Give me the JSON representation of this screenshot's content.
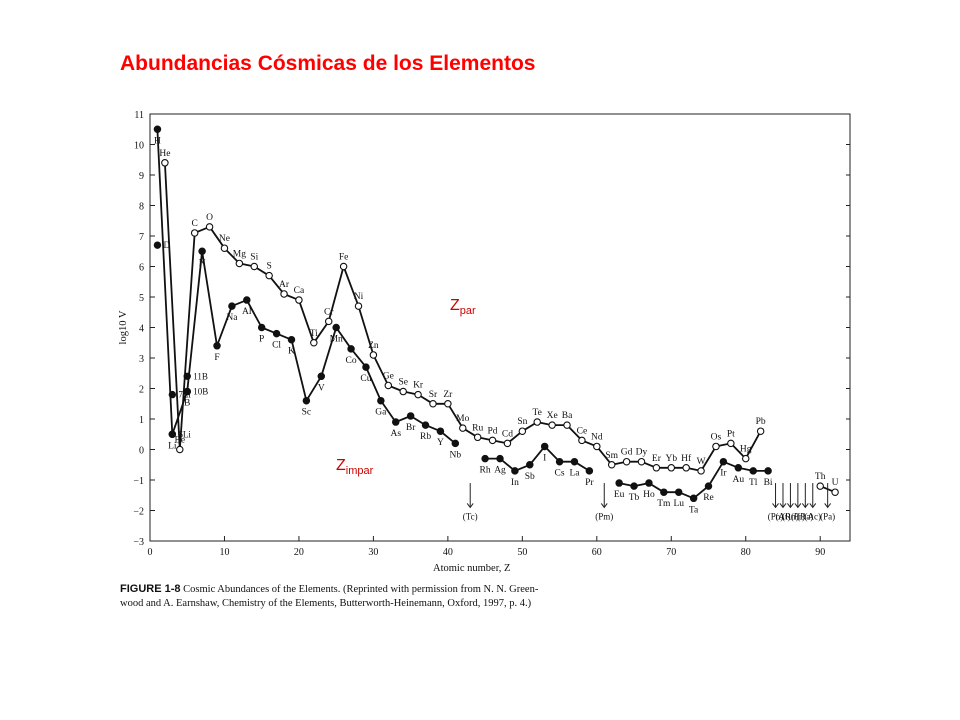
{
  "slide_title": "Abundancias Cósmicas de los Elementos",
  "caption": {
    "label": "FIGURE 1-8",
    "line1": "Cosmic Abundances of the Elements. (Reprinted with permission from N. N. Green-",
    "line2": "wood and A. Earnshaw, Chemistry of the Elements, Butterworth-Heinemann, Oxford, 1997, p. 4.)"
  },
  "chart_data": {
    "type": "line",
    "xlabel": "Atomic number, Z",
    "ylabel": "log10 V",
    "xlim": [
      0,
      94
    ],
    "ylim": [
      -3,
      11
    ],
    "xticks": [
      0,
      10,
      20,
      30,
      40,
      50,
      60,
      70,
      80,
      90
    ],
    "yticks": [
      -3,
      -2,
      -1,
      0,
      1,
      2,
      3,
      4,
      5,
      6,
      7,
      8,
      9,
      10,
      11
    ],
    "annotations": {
      "even_label": "Z par",
      "even_main": "Z",
      "even_sub": "par",
      "odd_label": "Z impar",
      "odd_main": "Z",
      "odd_sub": "impar"
    },
    "series": [
      {
        "name": "even",
        "marker": "open",
        "segments": [
          [
            [
              2,
              9.4,
              "He"
            ],
            [
              4,
              0,
              "Be"
            ],
            [
              6,
              7.1,
              "C"
            ],
            [
              8,
              7.3,
              "O"
            ],
            [
              10,
              6.6,
              "Ne"
            ],
            [
              12,
              6.1,
              "Mg"
            ],
            [
              14,
              6.0,
              "Si"
            ],
            [
              16,
              5.7,
              "S"
            ],
            [
              18,
              5.1,
              "Ar"
            ],
            [
              20,
              4.9,
              "Ca"
            ],
            [
              22,
              3.5,
              "Ti"
            ],
            [
              24,
              4.2,
              "Cr"
            ],
            [
              26,
              6.0,
              "Fe"
            ],
            [
              28,
              4.7,
              "Ni"
            ],
            [
              30,
              3.1,
              "Zn"
            ],
            [
              32,
              2.1,
              "Ge"
            ],
            [
              34,
              1.9,
              "Se"
            ],
            [
              36,
              1.8,
              "Kr"
            ],
            [
              38,
              1.5,
              "Sr"
            ],
            [
              40,
              1.5,
              "Zr"
            ],
            [
              42,
              0.7,
              "Mo"
            ],
            [
              44,
              0.4,
              "Ru"
            ],
            [
              46,
              0.3,
              "Pd"
            ],
            [
              48,
              0.2,
              "Cd"
            ],
            [
              50,
              0.6,
              "Sn"
            ],
            [
              52,
              0.9,
              "Te"
            ],
            [
              54,
              0.8,
              "Xe"
            ],
            [
              56,
              0.8,
              "Ba"
            ],
            [
              58,
              0.3,
              "Ce"
            ],
            [
              60,
              0.1,
              "Nd"
            ],
            [
              62,
              -0.5,
              "Sm"
            ],
            [
              64,
              -0.4,
              "Gd"
            ],
            [
              66,
              -0.4,
              "Dy"
            ],
            [
              68,
              -0.6,
              "Er"
            ],
            [
              70,
              -0.6,
              "Yb"
            ],
            [
              72,
              -0.6,
              "Hf"
            ],
            [
              74,
              -0.7,
              "W"
            ],
            [
              76,
              0.1,
              "Os"
            ],
            [
              78,
              0.2,
              "Pt"
            ],
            [
              80,
              -0.3,
              "Hg"
            ],
            [
              82,
              0.6,
              "Pb"
            ]
          ],
          [
            [
              90,
              -1.2,
              "Th"
            ],
            [
              92,
              -1.4,
              "U"
            ]
          ]
        ]
      },
      {
        "name": "odd",
        "marker": "filled",
        "segments": [
          [
            [
              1,
              10.5,
              "H"
            ],
            [
              3,
              0.5,
              "Li"
            ],
            [
              5,
              1.9,
              "B"
            ],
            [
              7,
              6.5,
              "N"
            ],
            [
              9,
              3.4,
              "F"
            ],
            [
              11,
              4.7,
              "Na"
            ],
            [
              13,
              4.9,
              "Al"
            ],
            [
              15,
              4.0,
              "P"
            ],
            [
              17,
              3.8,
              "Cl"
            ],
            [
              19,
              3.6,
              "K"
            ],
            [
              21,
              1.6,
              "Sc"
            ],
            [
              23,
              2.4,
              "V"
            ],
            [
              25,
              4.0,
              "Mn"
            ],
            [
              27,
              3.3,
              "Co"
            ],
            [
              29,
              2.7,
              "Cu"
            ],
            [
              31,
              1.6,
              "Ga"
            ],
            [
              33,
              0.9,
              "As"
            ],
            [
              35,
              1.1,
              "Br"
            ],
            [
              37,
              0.8,
              "Rb"
            ],
            [
              39,
              0.6,
              "Y"
            ],
            [
              41,
              0.2,
              "Nb"
            ]
          ],
          [
            [
              45,
              -0.3,
              "Rh"
            ],
            [
              47,
              -0.3,
              "Ag"
            ],
            [
              49,
              -0.7,
              "In"
            ],
            [
              51,
              -0.5,
              "Sb"
            ],
            [
              53,
              0.1,
              "I"
            ],
            [
              55,
              -0.4,
              "Cs"
            ],
            [
              57,
              -0.4,
              "La"
            ],
            [
              59,
              -0.7,
              "Pr"
            ]
          ],
          [
            [
              63,
              -1.1,
              "Eu"
            ],
            [
              65,
              -1.2,
              "Tb"
            ],
            [
              67,
              -1.1,
              "Ho"
            ],
            [
              69,
              -1.4,
              "Tm"
            ],
            [
              71,
              -1.4,
              "Lu"
            ],
            [
              73,
              -1.6,
              "Ta"
            ],
            [
              75,
              -1.2,
              "Re"
            ],
            [
              77,
              -0.4,
              "Ir"
            ],
            [
              79,
              -0.6,
              "Au"
            ],
            [
              81,
              -0.7,
              "Tl"
            ],
            [
              83,
              -0.7,
              "Bi"
            ]
          ]
        ]
      }
    ],
    "extra_points": [
      {
        "x": 1,
        "y": 6.7,
        "label": "D",
        "marker": "filled"
      },
      {
        "x": 3,
        "y": 1.8,
        "label": "7Li",
        "marker": "filled"
      },
      {
        "x": 3,
        "y": 0.5,
        "label": "6Li",
        "marker": "filled"
      },
      {
        "x": 5,
        "y": 2.4,
        "label": "11B",
        "marker": "filled"
      },
      {
        "x": 5,
        "y": 1.9,
        "label": "10B",
        "marker": "filled"
      }
    ],
    "missing_elements": [
      {
        "x": 43,
        "label": "(Tc)"
      },
      {
        "x": 61,
        "label": "(Pm)"
      },
      {
        "x": 84,
        "label": "(Po)"
      },
      {
        "x": 85,
        "label": "(At)"
      },
      {
        "x": 86,
        "label": "(Rn)"
      },
      {
        "x": 87,
        "label": "(Fr)"
      },
      {
        "x": 88,
        "label": "(Ra)"
      },
      {
        "x": 89,
        "label": "(Ac)"
      },
      {
        "x": 91,
        "label": "(Pa)"
      }
    ]
  }
}
